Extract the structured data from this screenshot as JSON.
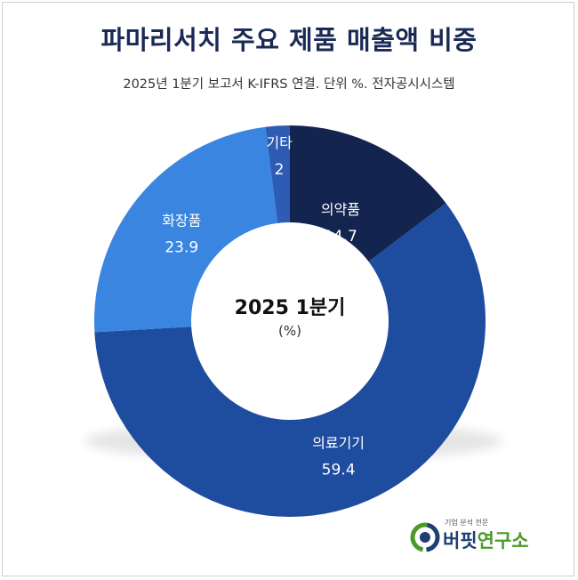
{
  "header": {
    "title": "파마리서치 주요 제품 매출액 비중",
    "subtitle": "2025년 1분기 보고서 K-IFRS 연결. 단위 %. 전자공시시스템"
  },
  "center": {
    "label": "2025 1분기",
    "unit": "(%)"
  },
  "chart_data": {
    "type": "pie",
    "donut": true,
    "title": "파마리서치 주요 제품 매출액 비중",
    "subtitle": "2025년 1분기 보고서 K-IFRS 연결. 단위 %. 전자공시시스템",
    "unit": "%",
    "slices": [
      {
        "label": "의약품",
        "value": 14.7,
        "color": "#13244f"
      },
      {
        "label": "의료기기",
        "value": 59.4,
        "color": "#1e4c9f"
      },
      {
        "label": "화장품",
        "value": 23.9,
        "color": "#3a85e0"
      },
      {
        "label": "기타",
        "value": 2,
        "color": "#2e5cb5"
      }
    ]
  },
  "logo": {
    "tagline": "기업 분석 전문",
    "name_main": "버핏",
    "name_accent": "연구소",
    "colors": {
      "navy": "#1f3f73",
      "green": "#4c9a2a"
    }
  }
}
